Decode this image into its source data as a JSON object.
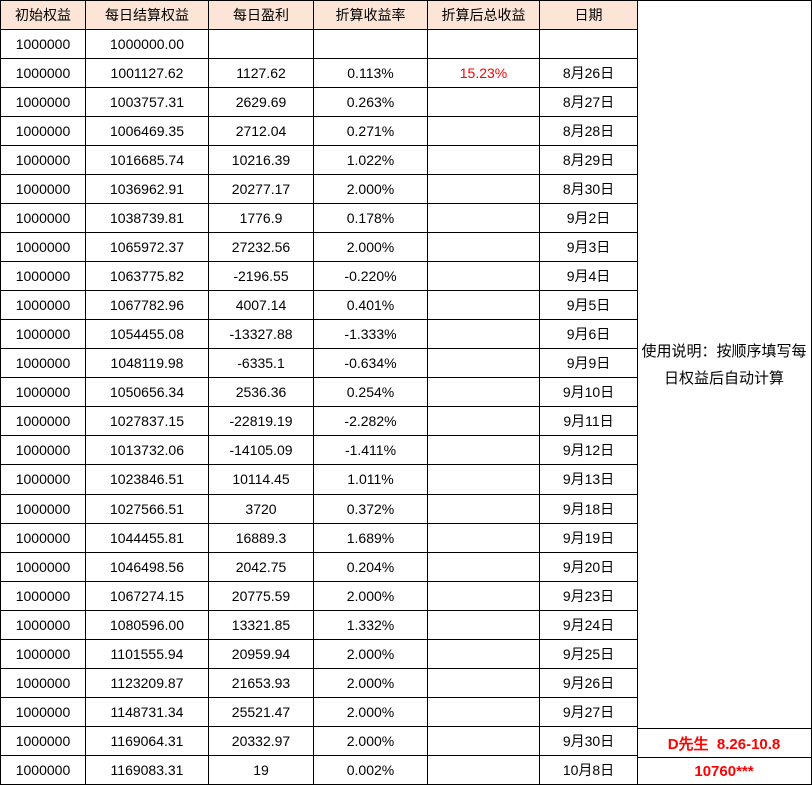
{
  "table": {
    "headers": [
      "初始权益",
      "每日结算权益",
      "每日盈利",
      "折算收益率",
      "折算后总收益",
      "日期"
    ],
    "column_keys": [
      "initial-equity",
      "settled-equity",
      "daily-profit",
      "return-rate",
      "total-return",
      "date"
    ],
    "rows": [
      [
        "1000000",
        "1000000.00",
        "",
        "",
        "",
        ""
      ],
      [
        "1000000",
        "1001127.62",
        "1127.62",
        "0.113%",
        "15.23%",
        "8月26日"
      ],
      [
        "1000000",
        "1003757.31",
        "2629.69",
        "0.263%",
        "",
        "8月27日"
      ],
      [
        "1000000",
        "1006469.35",
        "2712.04",
        "0.271%",
        "",
        "8月28日"
      ],
      [
        "1000000",
        "1016685.74",
        "10216.39",
        "1.022%",
        "",
        "8月29日"
      ],
      [
        "1000000",
        "1036962.91",
        "20277.17",
        "2.000%",
        "",
        "8月30日"
      ],
      [
        "1000000",
        "1038739.81",
        "1776.9",
        "0.178%",
        "",
        "9月2日"
      ],
      [
        "1000000",
        "1065972.37",
        "27232.56",
        "2.000%",
        "",
        "9月3日"
      ],
      [
        "1000000",
        "1063775.82",
        "-2196.55",
        "-0.220%",
        "",
        "9月4日"
      ],
      [
        "1000000",
        "1067782.96",
        "4007.14",
        "0.401%",
        "",
        "9月5日"
      ],
      [
        "1000000",
        "1054455.08",
        "-13327.88",
        "-1.333%",
        "",
        "9月6日"
      ],
      [
        "1000000",
        "1048119.98",
        "-6335.1",
        "-0.634%",
        "",
        "9月9日"
      ],
      [
        "1000000",
        "1050656.34",
        "2536.36",
        "0.254%",
        "",
        "9月10日"
      ],
      [
        "1000000",
        "1027837.15",
        "-22819.19",
        "-2.282%",
        "",
        "9月11日"
      ],
      [
        "1000000",
        "1013732.06",
        "-14105.09",
        "-1.411%",
        "",
        "9月12日"
      ],
      [
        "1000000",
        "1023846.51",
        "10114.45",
        "1.011%",
        "",
        "9月13日"
      ],
      [
        "1000000",
        "1027566.51",
        "3720",
        "0.372%",
        "",
        "9月18日"
      ],
      [
        "1000000",
        "1044455.81",
        "16889.3",
        "1.689%",
        "",
        "9月19日"
      ],
      [
        "1000000",
        "1046498.56",
        "2042.75",
        "0.204%",
        "",
        "9月20日"
      ],
      [
        "1000000",
        "1067274.15",
        "20775.59",
        "2.000%",
        "",
        "9月23日"
      ],
      [
        "1000000",
        "1080596.00",
        "13321.85",
        "1.332%",
        "",
        "9月24日"
      ],
      [
        "1000000",
        "1101555.94",
        "20959.94",
        "2.000%",
        "",
        "9月25日"
      ],
      [
        "1000000",
        "1123209.87",
        "21653.93",
        "2.000%",
        "",
        "9月26日"
      ],
      [
        "1000000",
        "1148731.34",
        "25521.47",
        "2.000%",
        "",
        "9月27日"
      ],
      [
        "1000000",
        "1169064.31",
        "20332.97",
        "2.000%",
        "",
        "9月30日"
      ],
      [
        "1000000",
        "1169083.31",
        "19",
        "0.002%",
        "",
        "10月8日"
      ]
    ],
    "highlight_total_row_index": 1,
    "highlight_total_value": "15.23%"
  },
  "side_panel": {
    "note_line1": "使用说明：按顺序填写每",
    "note_line2": "日权益后自动计算",
    "footer_line1": "D先生  8.26-10.8",
    "footer_line2": "10760***"
  },
  "colors": {
    "header_bg": "#FCE4D6",
    "highlight_red": "#FF0000",
    "border": "#000000",
    "background": "#FFFFFF"
  }
}
